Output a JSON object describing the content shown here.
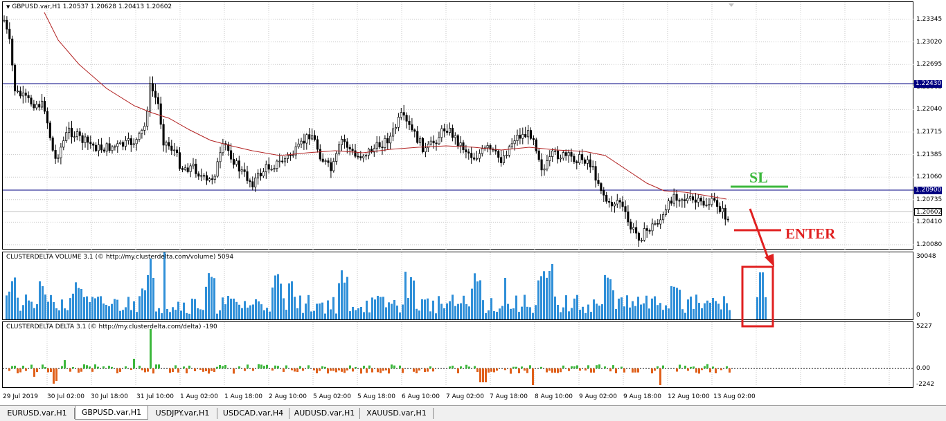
{
  "main": {
    "title": "GBPUSD.var,H1  1.20537 1.20628 1.20413 1.20602",
    "price_labels": [
      "1.23345",
      "1.23020",
      "1.22695",
      "1.22365",
      "1.22040",
      "1.21715",
      "1.21385",
      "1.21060",
      "1.20735",
      "1.20410",
      "1.20080"
    ],
    "badges": {
      "upper_level": "1.22430",
      "lower_level": "1.20900",
      "current_price": "1.20602"
    },
    "colors": {
      "level_line": "#000080",
      "ma_line": "#b22222",
      "badge_blue": "#0000cd"
    }
  },
  "volume": {
    "title": "CLUSTERDELTA VOLUME 3.1 (© http://my.clusterdelta.com/volume) 5094",
    "max_label": "30048",
    "zero_label": "0",
    "color": "#2f8fd8"
  },
  "delta": {
    "title": "CLUSTERDELTA DELTA 3.1 (© http://my.clusterdelta.com/delta) -190",
    "max_label": "5227",
    "zero_label": "0.00",
    "min_label": "-2242",
    "pos_color": "#3cb83c",
    "neg_color": "#e0601a"
  },
  "time_axis": [
    "29 Jul 2019",
    "30 Jul 02:00",
    "30 Jul 18:00",
    "31 Jul 10:00",
    "1 Aug 02:00",
    "1 Aug 18:00",
    "2 Aug 10:00",
    "5 Aug 02:00",
    "5 Aug 18:00",
    "6 Aug 10:00",
    "7 Aug 02:00",
    "7 Aug 18:00",
    "8 Aug 10:00",
    "9 Aug 02:00",
    "9 Aug 18:00",
    "12 Aug 10:00",
    "13 Aug 02:00"
  ],
  "annotations": {
    "sl_label": "SL",
    "enter_label": "ENTER",
    "sl_color": "#3cb83c",
    "enter_color": "#e02020"
  },
  "tabs": [
    {
      "label": "EURUSD.var,H1",
      "active": false
    },
    {
      "label": "GBPUSD.var,H1",
      "active": true
    },
    {
      "label": "USDJPY.var,H1",
      "active": false
    },
    {
      "label": "USDCAD.var,H4",
      "active": false
    },
    {
      "label": "AUDUSD.var,H1",
      "active": false
    },
    {
      "label": "XAUUSD.var,H1",
      "active": false
    }
  ]
}
